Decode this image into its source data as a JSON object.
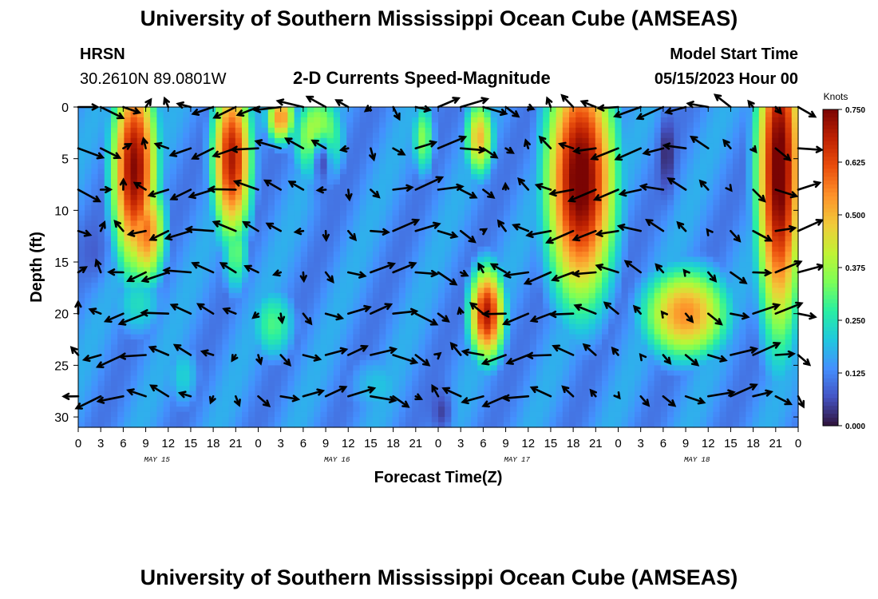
{
  "header": {
    "title": "University of Southern Mississippi Ocean Cube (AMSEAS)",
    "station": "HRSN",
    "coords": "30.2610N  89.0801W",
    "plot_title": "2-D Currents Speed-Magnitude",
    "model_label": "Model Start Time",
    "model_time": "05/15/2023 Hour 00"
  },
  "footer": {
    "title": "University of Southern Mississippi Ocean Cube (AMSEAS)"
  },
  "colors": {
    "ramp": [
      "#30123b",
      "#4454c4",
      "#4490fe",
      "#1fc8de",
      "#29efa2",
      "#7dff56",
      "#c1f334",
      "#f1ca3a",
      "#fe922a",
      "#ea4f0d",
      "#be2102",
      "#7a0403"
    ],
    "arrow": "#000000"
  },
  "chart_data": {
    "type": "heatmap",
    "title": "2-D Currents Speed-Magnitude",
    "xlabel": "Forecast Time(Z)",
    "ylabel": "Depth (ft)",
    "x_range_hours": [
      0,
      96
    ],
    "x_tick_labels": [
      "0",
      "3",
      "6",
      "9",
      "12",
      "15",
      "18",
      "21",
      "0",
      "3",
      "6",
      "9",
      "12",
      "15",
      "18",
      "21",
      "0",
      "3",
      "6",
      "9",
      "12",
      "15",
      "18",
      "21",
      "0",
      "3",
      "6",
      "9",
      "12",
      "15",
      "18",
      "21",
      "0"
    ],
    "date_labels": [
      {
        "text": "MAY 15",
        "hour": 10.5
      },
      {
        "text": "MAY 16",
        "hour": 34.5
      },
      {
        "text": "MAY 17",
        "hour": 58.5
      },
      {
        "text": "MAY 18",
        "hour": 82.5
      }
    ],
    "y_range_ft": [
      0,
      31
    ],
    "y_ticks": [
      0,
      5,
      10,
      15,
      20,
      25,
      30
    ],
    "colorbar": {
      "title": "Knots",
      "ticks": [
        "0.750",
        "0.625",
        "0.500",
        "0.375",
        "0.250",
        "0.125",
        "0.000"
      ],
      "range": [
        0,
        0.75
      ]
    },
    "arrow_depths_ft": [
      0,
      4,
      8,
      12,
      16,
      20,
      24,
      28
    ],
    "speed_hotspots": [
      {
        "t": 7.5,
        "d": 6,
        "sigma_t": 2.3,
        "sigma_d": 7.5,
        "v": 0.74
      },
      {
        "t": 9,
        "d": 12,
        "sigma_t": 2.0,
        "sigma_d": 4,
        "v": 0.58
      },
      {
        "t": 8,
        "d": 19,
        "sigma_t": 3,
        "sigma_d": 3,
        "v": 0.24
      },
      {
        "t": 32,
        "d": 3,
        "sigma_t": 2.5,
        "sigma_d": 3.5,
        "v": 0.45
      },
      {
        "t": 26,
        "d": 21,
        "sigma_t": 2.5,
        "sigma_d": 3,
        "v": 0.3
      },
      {
        "t": 20.5,
        "d": 5,
        "sigma_t": 2.0,
        "sigma_d": 6,
        "v": 0.7
      },
      {
        "t": 21,
        "d": 14,
        "sigma_t": 1.5,
        "sigma_d": 3.5,
        "v": 0.32
      },
      {
        "t": 27,
        "d": 1,
        "sigma_t": 1.5,
        "sigma_d": 2,
        "v": 0.55
      },
      {
        "t": 54.5,
        "d": 20,
        "sigma_t": 1.8,
        "sigma_d": 3.5,
        "v": 0.7
      },
      {
        "t": 53.5,
        "d": 3,
        "sigma_t": 1.5,
        "sigma_d": 3,
        "v": 0.5
      },
      {
        "t": 46,
        "d": 3,
        "sigma_t": 1.2,
        "sigma_d": 3,
        "v": 0.35
      },
      {
        "t": 67,
        "d": 7,
        "sigma_t": 3.5,
        "sigma_d": 9,
        "v": 0.78
      },
      {
        "t": 81,
        "d": 20,
        "sigma_t": 4.5,
        "sigma_d": 3.5,
        "v": 0.55
      },
      {
        "t": 93.5,
        "d": 6,
        "sigma_t": 2.3,
        "sigma_d": 12,
        "v": 0.78
      },
      {
        "t": 14,
        "d": 26,
        "sigma_t": 2,
        "sigma_d": 3,
        "v": 0.22
      },
      {
        "t": 40,
        "d": 27,
        "sigma_t": 4,
        "sigma_d": 3,
        "v": 0.2
      }
    ],
    "speed_lows": [
      {
        "t": 32.5,
        "d": 5.5,
        "sigma_t": 1.0,
        "sigma_d": 2.0,
        "v": 0.06
      },
      {
        "t": 78.5,
        "d": 4.5,
        "sigma_t": 0.7,
        "sigma_d": 2.5,
        "v": 0.02
      },
      {
        "t": 2.0,
        "d": 14,
        "sigma_t": 1.2,
        "sigma_d": 2.0,
        "v": 0.08
      },
      {
        "t": 48.5,
        "d": 29.5,
        "sigma_t": 1.0,
        "sigma_d": 1.5,
        "v": 0.05
      }
    ]
  }
}
